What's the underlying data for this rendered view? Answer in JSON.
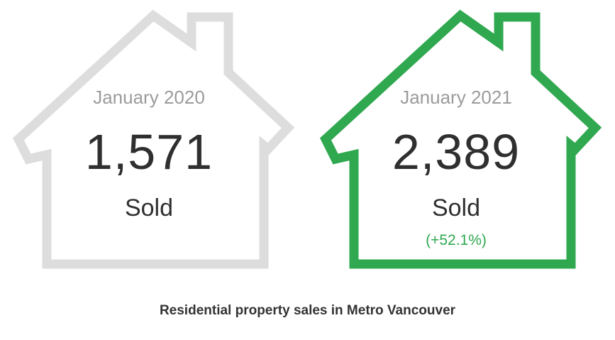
{
  "colors": {
    "previous_outline": "#dddddd",
    "current_outline": "#2fa84f",
    "change_text": "#2fa84f"
  },
  "houses": [
    {
      "period": "January 2020",
      "count": "1,571",
      "unit": "Sold",
      "icon": "house-outline-icon",
      "outline_color": "#dddddd"
    },
    {
      "period": "January 2021",
      "count": "2,389",
      "unit": "Sold",
      "change": "(+52.1%)",
      "icon": "house-outline-icon",
      "outline_color": "#2fa84f"
    }
  ],
  "caption": "Residential property sales in Metro Vancouver"
}
